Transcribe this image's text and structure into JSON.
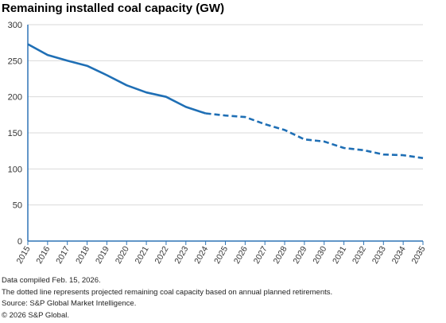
{
  "chart_data": {
    "type": "line",
    "title": "Remaining installed coal capacity (GW)",
    "xlabel": "",
    "ylabel": "",
    "ylim": [
      0,
      300
    ],
    "yticks": [
      0,
      50,
      100,
      150,
      200,
      250,
      300
    ],
    "x": [
      "2015",
      "2016",
      "2017",
      "2018",
      "2019",
      "2020",
      "2021",
      "2022",
      "2023",
      "2024",
      "2025",
      "2026",
      "2027",
      "2028",
      "2029",
      "2030",
      "2031",
      "2032",
      "2033",
      "2034",
      "2035"
    ],
    "series": [
      {
        "style": "solid",
        "x": [
          "2015",
          "2016",
          "2017",
          "2018",
          "2019",
          "2020",
          "2021",
          "2022",
          "2023",
          "2024"
        ],
        "values": [
          273,
          258,
          250,
          243,
          230,
          216,
          206,
          200,
          186,
          177
        ]
      },
      {
        "style": "dotted",
        "x": [
          "2024",
          "2025",
          "2026",
          "2027",
          "2028",
          "2029",
          "2030",
          "2031",
          "2032",
          "2033",
          "2034",
          "2035"
        ],
        "values": [
          177,
          174,
          172,
          162,
          154,
          141,
          138,
          129,
          126,
          120,
          119,
          115
        ]
      }
    ],
    "grid": "horizontal",
    "legend": "none",
    "colors": {
      "line": "#1f6fb5",
      "axis": "#2f74b5",
      "grid": "#d9d9d9",
      "tick_label": "#333333"
    }
  },
  "notes": {
    "compiled": "Data compiled Feb. 15, 2026.",
    "dotted": "The dotted line represents projected remaining coal capacity based on annual planned retirements.",
    "source": "Source: S&P Global Market Intelligence.",
    "copyright": "© 2026 S&P Global."
  }
}
